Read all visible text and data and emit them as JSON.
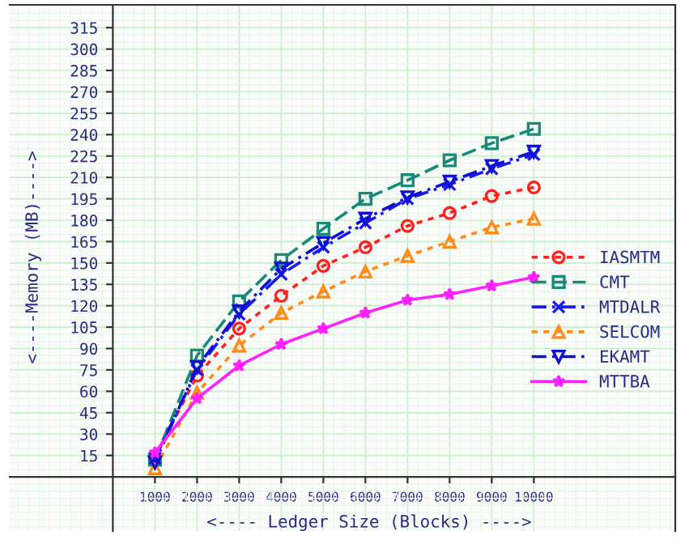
{
  "chart_data": {
    "type": "line",
    "xlabel": "<---- Ledger Size (Blocks) ---->",
    "ylabel": "<----Memory (MB)---->",
    "x": [
      1000,
      2000,
      3000,
      4000,
      5000,
      6000,
      7000,
      8000,
      9000,
      10000
    ],
    "series": [
      {
        "name": "IASMTM",
        "color": "#ff2020",
        "marker": "circle",
        "line_style": "dotted",
        "values": [
          14,
          71,
          104,
          127,
          148,
          161,
          176,
          185,
          197,
          203
        ]
      },
      {
        "name": "CMT",
        "color": "#178a7a",
        "marker": "square",
        "line_style": "dashed",
        "values": [
          12,
          85,
          123,
          152,
          174,
          195,
          208,
          222,
          234,
          244
        ]
      },
      {
        "name": "MTDALR",
        "color": "#1a1aee",
        "marker": "cross",
        "line_style": "dashdot",
        "values": [
          13,
          75,
          114,
          142,
          161,
          178,
          195,
          205,
          216,
          226
        ]
      },
      {
        "name": "SELCOM",
        "color": "#ff8c1a",
        "marker": "triangle",
        "line_style": "dotted",
        "values": [
          6,
          59,
          92,
          115,
          130,
          144,
          155,
          165,
          175,
          181
        ]
      },
      {
        "name": "EKAMT",
        "color": "#1010d0",
        "marker": "triangle_down",
        "line_style": "dashdot",
        "values": [
          10,
          77,
          116,
          146,
          164,
          181,
          196,
          207,
          218,
          228
        ]
      },
      {
        "name": "MTTBA",
        "color": "#ff20ff",
        "marker": "star",
        "line_style": "solid",
        "values": [
          17,
          55,
          78,
          93,
          104,
          115,
          124,
          128,
          134,
          140
        ]
      }
    ],
    "xlim": [
      -2450,
      13360
    ],
    "ylim": [
      -38,
      331
    ],
    "xticks": [
      1000,
      2000,
      3000,
      4000,
      5000,
      6000,
      7000,
      8000,
      9000,
      10000
    ],
    "yticks": [
      15,
      30,
      45,
      60,
      75,
      90,
      105,
      120,
      135,
      150,
      165,
      180,
      195,
      210,
      225,
      240,
      255,
      270,
      285,
      300,
      315
    ],
    "grid": true,
    "legend": "right"
  }
}
